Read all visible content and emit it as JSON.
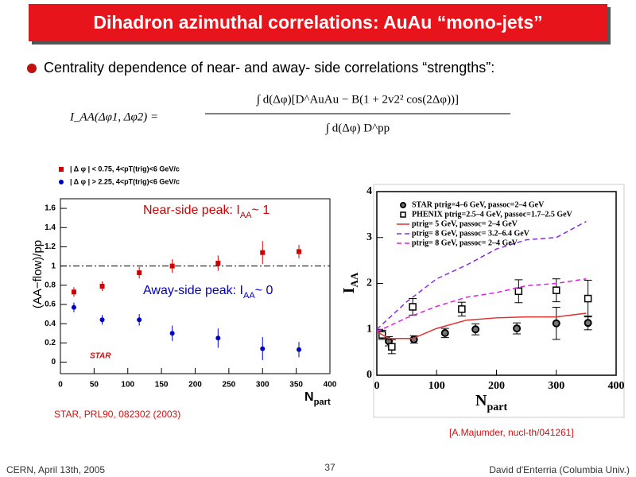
{
  "slide": {
    "title": "Dihadron azimuthal correlations: AuAu “mono-jets”",
    "bullet": "Centrality dependence of near- and away- side correlations “strengths”:",
    "formula": {
      "lhs": "I_AA(Δφ1, Δφ2) =",
      "numerator": "∫ d(Δφ)[D^AuAu − B(1 + 2v2² cos(2Δφ))]",
      "denominator": "∫ d(Δφ) D^pp"
    },
    "reference_left": "STAR, PRL90, 082302 (2003)",
    "reference_right": "[A.Majumder, nucl-th/041261]",
    "footer": {
      "left": "CERN, April 13th, 2005",
      "page": "37",
      "right": "David d'Enterria (Columbia Univ.)"
    }
  },
  "chart_data": [
    {
      "type": "scatter",
      "y_label": "(AA−flow)/pp",
      "x_label": [
        "N",
        "part"
      ],
      "logo": "STAR",
      "xlim": [
        0,
        400
      ],
      "xticks": [
        0,
        50,
        100,
        150,
        200,
        250,
        300,
        350,
        400
      ],
      "ylim": [
        -0.12,
        1.7
      ],
      "yticks": [
        0,
        0.2,
        0.4,
        0.6,
        0.8,
        1,
        1.2,
        1.4,
        1.6
      ],
      "reference_line": 1,
      "series": [
        {
          "name": "| Δ φ | < 0.75, 4<pT(trig)<6 GeV/c",
          "color": "#d00000",
          "marker": "square",
          "x": [
            20,
            62,
            117,
            166,
            234,
            300,
            354
          ],
          "values": [
            0.73,
            0.79,
            0.93,
            1.0,
            1.03,
            1.14,
            1.15
          ],
          "errors": [
            0.05,
            0.05,
            0.06,
            0.07,
            0.08,
            0.12,
            0.07
          ]
        },
        {
          "name": "| Δ φ | > 2.25, 4<pT(trig)<6 GeV/c",
          "color": "#0000c0",
          "marker": "circle",
          "x": [
            20,
            62,
            117,
            166,
            234,
            300,
            354
          ],
          "values": [
            0.57,
            0.44,
            0.44,
            0.3,
            0.25,
            0.14,
            0.13
          ],
          "errors": [
            0.05,
            0.05,
            0.06,
            0.08,
            0.1,
            0.12,
            0.08
          ]
        }
      ],
      "annotations": [
        {
          "parts": [
            "Near-side peak: I",
            "AA",
            "~ 1"
          ],
          "color": "#d00000"
        },
        {
          "parts": [
            "Away-side peak: I",
            "AA",
            "~ 0"
          ],
          "color": "#0000c0"
        }
      ]
    },
    {
      "type": "line",
      "y_label": [
        "I",
        "AA"
      ],
      "x_label": [
        "N",
        "part"
      ],
      "xlim": [
        0,
        400
      ],
      "xticks": [
        0,
        100,
        200,
        300,
        400
      ],
      "ylim": [
        0,
        4
      ],
      "yticks": [
        0,
        1,
        2,
        3,
        4
      ],
      "series": [
        {
          "name": "STAR ptrig=4–6 GeV, passoc=2–4 GeV",
          "color": "#000000",
          "marker": "circle",
          "x": [
            20,
            62,
            114,
            165,
            234,
            300,
            353
          ],
          "values": [
            0.74,
            0.78,
            0.92,
            1.0,
            1.02,
            1.13,
            1.14
          ],
          "errors": [
            0.1,
            0.08,
            0.1,
            0.12,
            0.12,
            0.35,
            0.15
          ]
        },
        {
          "name": "PHENIX ptrig=2.5–4 GeV, passoc=1.7–2.5 GeV",
          "color": "#000000",
          "marker": "square-open",
          "x": [
            9,
            25,
            60,
            142,
            237,
            300,
            353
          ],
          "values": [
            0.88,
            0.62,
            1.49,
            1.44,
            1.83,
            1.85,
            1.67
          ],
          "errors": [
            0.1,
            0.15,
            0.18,
            0.15,
            0.25,
            0.25,
            0.4
          ]
        },
        {
          "name": "ptrig= 5 GeV, passoc= 2–4 GeV",
          "color": "#e03030",
          "dash": "none",
          "x": [
            0,
            20,
            60,
            100,
            150,
            200,
            250,
            300,
            350
          ],
          "values": [
            0.95,
            0.8,
            0.8,
            1.02,
            1.2,
            1.25,
            1.27,
            1.27,
            1.35
          ]
        },
        {
          "name": "ptrig= 8 GeV, passoc= 3.2–6.4 GeV",
          "color": "#8a2be2",
          "dash": "6 4",
          "x": [
            0,
            50,
            100,
            150,
            200,
            250,
            300,
            350
          ],
          "values": [
            1.0,
            1.6,
            2.1,
            2.4,
            2.75,
            2.95,
            3.0,
            3.35
          ]
        },
        {
          "name": "ptrig= 8 GeV, passoc= 2–4 GeV",
          "color": "#e020e0",
          "dash": "6 4",
          "x": [
            0,
            50,
            100,
            150,
            200,
            250,
            300,
            350
          ],
          "values": [
            0.95,
            1.25,
            1.5,
            1.7,
            1.8,
            1.95,
            2.0,
            2.1
          ]
        }
      ]
    }
  ]
}
